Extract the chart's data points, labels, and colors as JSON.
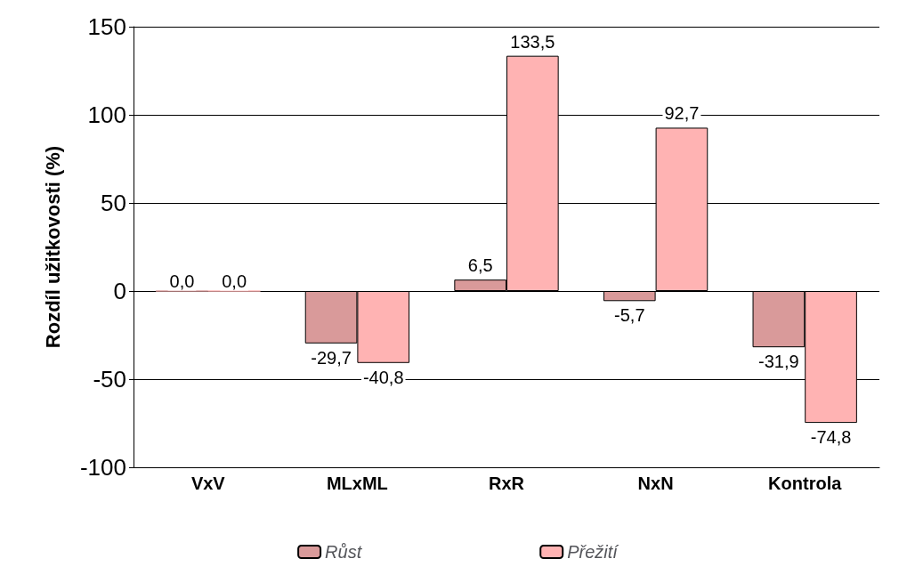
{
  "chart_data": {
    "type": "bar",
    "ylabel": "Rozdíl užitkovosti (%)",
    "categories": [
      "VxV",
      "MLxML",
      "RxR",
      "NxN",
      "Kontrola"
    ],
    "series": [
      {
        "name": "Růst",
        "color": "#d99a9a",
        "values": [
          0.0,
          -29.7,
          6.5,
          -5.7,
          -31.9
        ],
        "value_labels": [
          "0,0",
          "-29,7",
          "6,5",
          "-5,7",
          "-31,9"
        ]
      },
      {
        "name": "Přežití",
        "color": "#ffb3b3",
        "values": [
          0.0,
          -40.8,
          133.5,
          92.7,
          -74.8
        ],
        "value_labels": [
          "0,0",
          "-40,8",
          "133,5",
          "92,7",
          "-74,8"
        ]
      }
    ],
    "ylim": [
      -100,
      150
    ],
    "yticks": [
      -100,
      -50,
      0,
      50,
      100,
      150
    ],
    "grid": "y",
    "legend": "bottom"
  }
}
